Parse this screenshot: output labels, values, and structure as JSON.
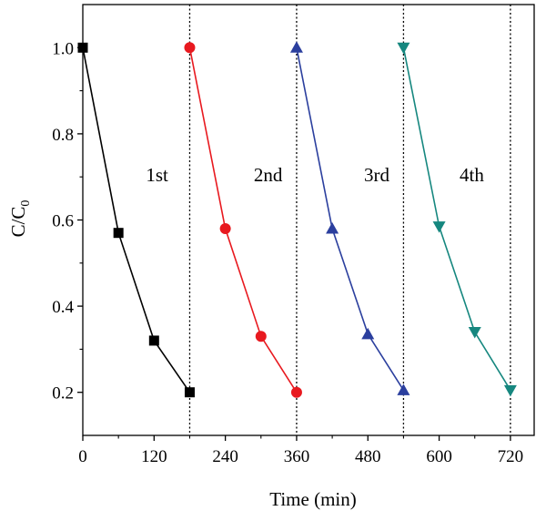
{
  "chart_data": {
    "type": "line",
    "title": "",
    "xlabel": "Time (min)",
    "ylabel_main": "C/C",
    "ylabel_sub": "0",
    "xlim": [
      0,
      760
    ],
    "ylim": [
      0.1,
      1.1
    ],
    "xticks": [
      0,
      120,
      240,
      360,
      480,
      600,
      720
    ],
    "yticks": [
      0.2,
      0.4,
      0.6,
      0.8,
      1.0
    ],
    "xtick_labels": [
      "0",
      "120",
      "240",
      "360",
      "480",
      "600",
      "720"
    ],
    "ytick_labels": [
      "0.2",
      "0.4",
      "0.6",
      "0.8",
      "1.0"
    ],
    "cycle_dividers_x": [
      180,
      360,
      540,
      720
    ],
    "grid": false,
    "series": [
      {
        "label": "1st",
        "color": "#000000",
        "marker": "square",
        "x": [
          0,
          60,
          120,
          180
        ],
        "y": [
          1.0,
          0.57,
          0.32,
          0.2
        ],
        "label_pos": [
          125,
          0.69
        ]
      },
      {
        "label": "2nd",
        "color": "#e8191f",
        "marker": "circle",
        "x": [
          180,
          240,
          300,
          360
        ],
        "y": [
          1.0,
          0.58,
          0.33,
          0.2
        ],
        "label_pos": [
          312,
          0.69
        ]
      },
      {
        "label": "3rd",
        "color": "#2b3f9e",
        "marker": "triangle-up",
        "x": [
          360,
          420,
          480,
          540
        ],
        "y": [
          1.0,
          0.58,
          0.335,
          0.205
        ],
        "label_pos": [
          495,
          0.69
        ]
      },
      {
        "label": "4th",
        "color": "#16877f",
        "marker": "triangle-down",
        "x": [
          540,
          600,
          660,
          720
        ],
        "y": [
          1.0,
          0.585,
          0.34,
          0.205
        ],
        "label_pos": [
          655,
          0.69
        ]
      }
    ]
  }
}
